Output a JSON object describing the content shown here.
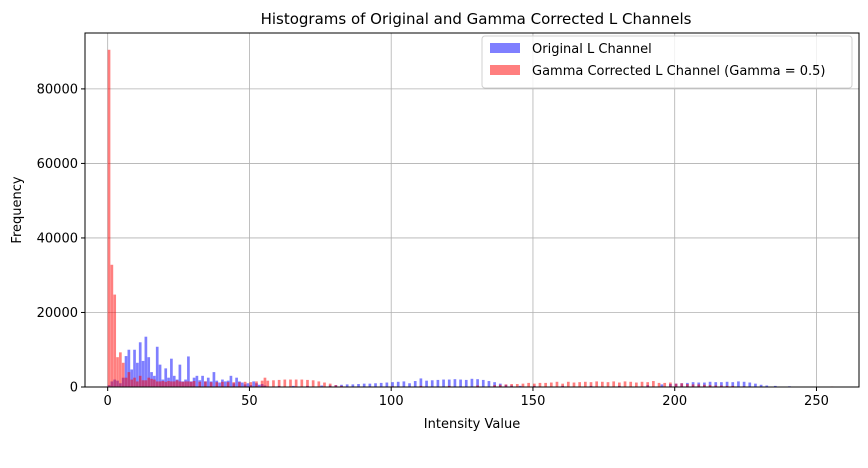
{
  "chart_data": {
    "type": "bar",
    "title": "Histograms of Original and Gamma Corrected L Channels",
    "xlabel": "Intensity Value",
    "ylabel": "Frequency",
    "xlim": [
      -8,
      265
    ],
    "ylim": [
      0,
      95000
    ],
    "xticks": [
      0,
      50,
      100,
      150,
      200,
      250
    ],
    "yticks": [
      0,
      20000,
      40000,
      60000,
      80000
    ],
    "grid": true,
    "legend_position": "top-right",
    "bin_width": 1,
    "series": [
      {
        "name": "Original L Channel",
        "color": "#0000ff",
        "alpha": 0.5,
        "bins": [
          [
            0,
            500
          ],
          [
            1,
            1500
          ],
          [
            2,
            2000
          ],
          [
            3,
            1700
          ],
          [
            4,
            1000
          ],
          [
            5,
            2500
          ],
          [
            6,
            8300
          ],
          [
            7,
            10000
          ],
          [
            8,
            4700
          ],
          [
            9,
            10000
          ],
          [
            10,
            6500
          ],
          [
            11,
            12000
          ],
          [
            12,
            7000
          ],
          [
            13,
            13500
          ],
          [
            14,
            8000
          ],
          [
            15,
            4000
          ],
          [
            16,
            3000
          ],
          [
            17,
            10800
          ],
          [
            18,
            6000
          ],
          [
            19,
            2000
          ],
          [
            20,
            5000
          ],
          [
            21,
            2500
          ],
          [
            22,
            7600
          ],
          [
            23,
            3000
          ],
          [
            24,
            2000
          ],
          [
            25,
            6000
          ],
          [
            26,
            1500
          ],
          [
            27,
            2000
          ],
          [
            28,
            8200
          ],
          [
            29,
            1500
          ],
          [
            30,
            2500
          ],
          [
            31,
            3000
          ],
          [
            32,
            1800
          ],
          [
            33,
            3000
          ],
          [
            34,
            1500
          ],
          [
            35,
            2500
          ],
          [
            36,
            1500
          ],
          [
            37,
            4000
          ],
          [
            38,
            1700
          ],
          [
            39,
            1200
          ],
          [
            40,
            2000
          ],
          [
            41,
            1500
          ],
          [
            42,
            1700
          ],
          [
            43,
            3000
          ],
          [
            44,
            1000
          ],
          [
            45,
            2500
          ],
          [
            46,
            1500
          ],
          [
            47,
            1200
          ],
          [
            48,
            700
          ],
          [
            49,
            1000
          ],
          [
            50,
            500
          ],
          [
            51,
            1500
          ],
          [
            52,
            1000
          ],
          [
            53,
            600
          ],
          [
            54,
            800
          ],
          [
            55,
            400
          ],
          [
            60,
            300
          ],
          [
            65,
            300
          ],
          [
            70,
            300
          ],
          [
            75,
            400
          ],
          [
            78,
            400
          ],
          [
            80,
            500
          ],
          [
            82,
            600
          ],
          [
            84,
            700
          ],
          [
            86,
            700
          ],
          [
            88,
            800
          ],
          [
            90,
            900
          ],
          [
            92,
            900
          ],
          [
            94,
            1000
          ],
          [
            96,
            1100
          ],
          [
            98,
            1200
          ],
          [
            100,
            1300
          ],
          [
            102,
            1400
          ],
          [
            104,
            1500
          ],
          [
            106,
            1000
          ],
          [
            108,
            1600
          ],
          [
            110,
            2300
          ],
          [
            112,
            1700
          ],
          [
            114,
            1800
          ],
          [
            116,
            1900
          ],
          [
            118,
            2000
          ],
          [
            120,
            2000
          ],
          [
            122,
            2100
          ],
          [
            124,
            2000
          ],
          [
            126,
            1900
          ],
          [
            128,
            2200
          ],
          [
            130,
            2100
          ],
          [
            132,
            1900
          ],
          [
            134,
            1600
          ],
          [
            136,
            1300
          ],
          [
            138,
            900
          ],
          [
            140,
            600
          ],
          [
            142,
            400
          ],
          [
            145,
            300
          ],
          [
            150,
            300
          ],
          [
            160,
            300
          ],
          [
            170,
            300
          ],
          [
            180,
            300
          ],
          [
            190,
            500
          ],
          [
            195,
            700
          ],
          [
            198,
            800
          ],
          [
            200,
            900
          ],
          [
            202,
            1000
          ],
          [
            204,
            1100
          ],
          [
            206,
            1300
          ],
          [
            208,
            1200
          ],
          [
            210,
            1200
          ],
          [
            212,
            1400
          ],
          [
            214,
            1300
          ],
          [
            216,
            1300
          ],
          [
            218,
            1400
          ],
          [
            220,
            1300
          ],
          [
            222,
            1500
          ],
          [
            224,
            1400
          ],
          [
            226,
            1200
          ],
          [
            228,
            900
          ],
          [
            230,
            600
          ],
          [
            232,
            400
          ],
          [
            235,
            300
          ],
          [
            240,
            200
          ],
          [
            245,
            100
          ]
        ]
      },
      {
        "name": "Gamma Corrected L Channel (Gamma = 0.5)",
        "color": "#ff0000",
        "alpha": 0.5,
        "bins": [
          [
            0,
            90500
          ],
          [
            1,
            32800
          ],
          [
            2,
            24800
          ],
          [
            3,
            8000
          ],
          [
            4,
            9300
          ],
          [
            5,
            6500
          ],
          [
            6,
            2500
          ],
          [
            7,
            4000
          ],
          [
            8,
            2000
          ],
          [
            9,
            2500
          ],
          [
            10,
            1500
          ],
          [
            11,
            3000
          ],
          [
            12,
            1800
          ],
          [
            13,
            1800
          ],
          [
            14,
            2500
          ],
          [
            15,
            2200
          ],
          [
            16,
            2000
          ],
          [
            17,
            1500
          ],
          [
            18,
            1500
          ],
          [
            19,
            1600
          ],
          [
            20,
            1400
          ],
          [
            21,
            1600
          ],
          [
            22,
            1500
          ],
          [
            23,
            1500
          ],
          [
            24,
            1800
          ],
          [
            25,
            1500
          ],
          [
            26,
            1400
          ],
          [
            27,
            1500
          ],
          [
            28,
            1500
          ],
          [
            29,
            1400
          ],
          [
            30,
            1600
          ],
          [
            32,
            1400
          ],
          [
            34,
            1500
          ],
          [
            36,
            1300
          ],
          [
            38,
            1300
          ],
          [
            40,
            1400
          ],
          [
            42,
            1300
          ],
          [
            44,
            1300
          ],
          [
            46,
            1300
          ],
          [
            48,
            1400
          ],
          [
            50,
            1300
          ],
          [
            52,
            1500
          ],
          [
            54,
            1700
          ],
          [
            55,
            2500
          ],
          [
            56,
            1700
          ],
          [
            58,
            1800
          ],
          [
            60,
            1900
          ],
          [
            62,
            2000
          ],
          [
            64,
            2000
          ],
          [
            66,
            2000
          ],
          [
            68,
            2000
          ],
          [
            70,
            1900
          ],
          [
            72,
            1800
          ],
          [
            74,
            1500
          ],
          [
            76,
            1200
          ],
          [
            78,
            900
          ],
          [
            80,
            500
          ],
          [
            82,
            300
          ],
          [
            85,
            100
          ],
          [
            90,
            100
          ],
          [
            100,
            200
          ],
          [
            110,
            300
          ],
          [
            120,
            300
          ],
          [
            130,
            400
          ],
          [
            136,
            500
          ],
          [
            138,
            600
          ],
          [
            140,
            700
          ],
          [
            142,
            800
          ],
          [
            144,
            800
          ],
          [
            146,
            900
          ],
          [
            148,
            1100
          ],
          [
            150,
            900
          ],
          [
            152,
            1100
          ],
          [
            154,
            1100
          ],
          [
            156,
            1200
          ],
          [
            158,
            1400
          ],
          [
            160,
            900
          ],
          [
            162,
            1400
          ],
          [
            164,
            1200
          ],
          [
            166,
            1300
          ],
          [
            168,
            1400
          ],
          [
            170,
            1300
          ],
          [
            172,
            1500
          ],
          [
            174,
            1400
          ],
          [
            176,
            1300
          ],
          [
            178,
            1500
          ],
          [
            180,
            1200
          ],
          [
            182,
            1500
          ],
          [
            184,
            1400
          ],
          [
            186,
            1200
          ],
          [
            188,
            1400
          ],
          [
            190,
            1300
          ],
          [
            192,
            1600
          ],
          [
            194,
            1100
          ],
          [
            196,
            1100
          ],
          [
            198,
            1200
          ],
          [
            200,
            900
          ],
          [
            202,
            1000
          ],
          [
            204,
            800
          ],
          [
            206,
            700
          ],
          [
            208,
            700
          ],
          [
            210,
            600
          ],
          [
            212,
            500
          ],
          [
            214,
            400
          ],
          [
            216,
            400
          ],
          [
            218,
            300
          ],
          [
            220,
            300
          ],
          [
            224,
            200
          ],
          [
            230,
            100
          ],
          [
            255,
            150
          ]
        ]
      }
    ]
  }
}
